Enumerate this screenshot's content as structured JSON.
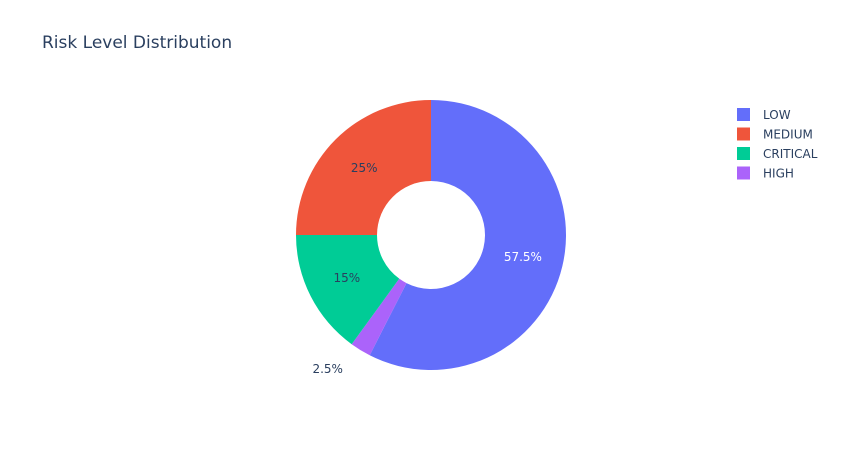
{
  "chart_data": {
    "type": "pie",
    "title": "Risk Level Distribution",
    "hole": 0.4,
    "direction": "clockwise",
    "rotation_deg": 0,
    "legend_position": "top-right",
    "slices": [
      {
        "label": "LOW",
        "value": 57.5,
        "text": "57.5%",
        "color": "#636efa",
        "text_color": "#ffffff",
        "text_position": "inside"
      },
      {
        "label": "HIGH",
        "value": 2.5,
        "text": "2.5%",
        "color": "#ab63fa",
        "text_color": "#2a3f5f",
        "text_position": "outside"
      },
      {
        "label": "CRITICAL",
        "value": 15,
        "text": "15%",
        "color": "#00cc96",
        "text_color": "#2a3f5f",
        "text_position": "inside"
      },
      {
        "label": "MEDIUM",
        "value": 25,
        "text": "25%",
        "color": "#ef553b",
        "text_color": "#2a3f5f",
        "text_position": "inside"
      }
    ],
    "legend_order": [
      "LOW",
      "MEDIUM",
      "CRITICAL",
      "HIGH"
    ]
  }
}
